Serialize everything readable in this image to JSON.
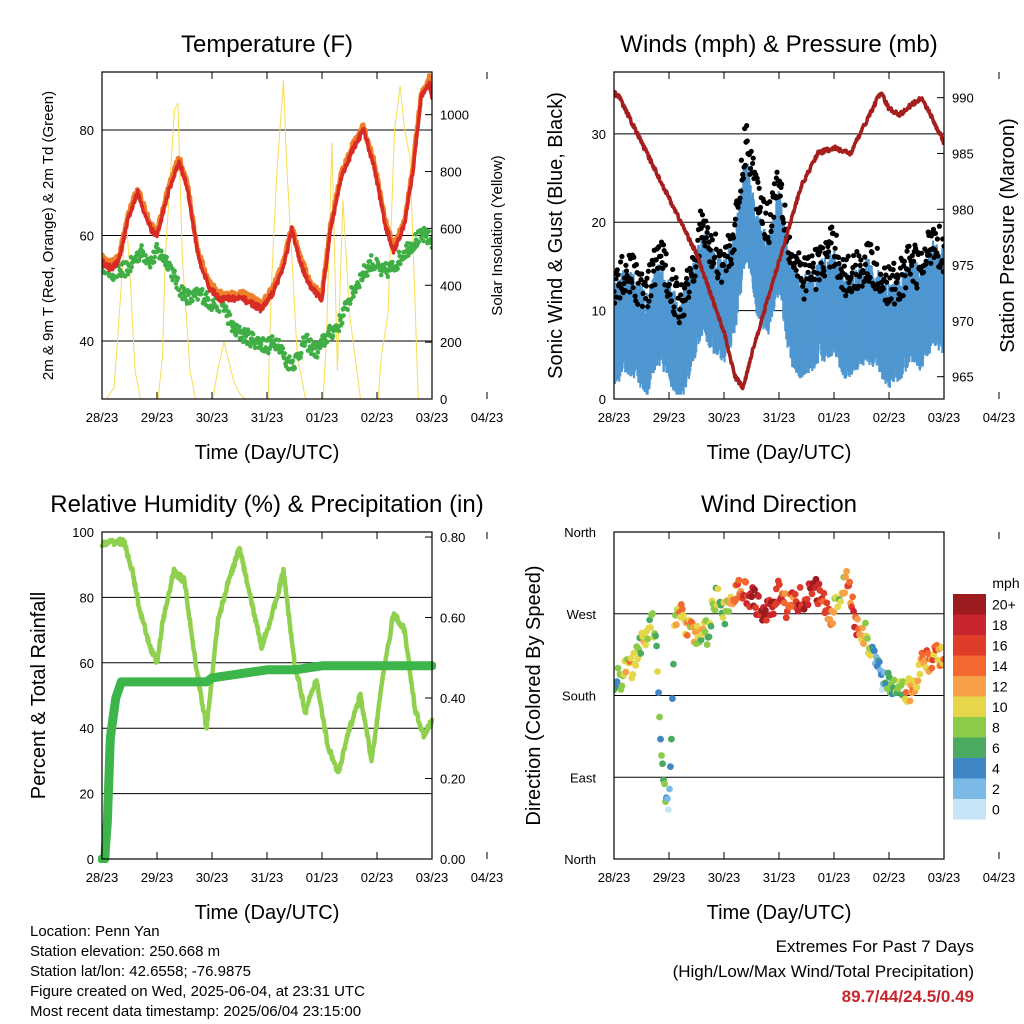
{
  "colors": {
    "temp_2m": "#d92b26",
    "temp_9m": "#f07f2a",
    "dewpoint": "#3fae45",
    "solar": "#f7dc55",
    "wind": "#4f97d1",
    "gust": "#000000",
    "pressure": "#a51e1e",
    "rh": "#8fd14f",
    "precip": "#3cb54a",
    "extremes": "#c8262e"
  },
  "chart_data": [
    {
      "type": "line",
      "title": "Temperature (F)",
      "xlabel": "Time (Day/UTC)",
      "ylabel": "2m & 9m T (Red, Orange) & 2m Td (Green)",
      "ylabel_right": "Solar Insolation (Yellow)",
      "x_ticks": [
        "28/23",
        "29/23",
        "30/23",
        "31/23",
        "01/23",
        "02/23",
        "03/23",
        "04/23"
      ],
      "xlim_days": [
        0,
        6
      ],
      "ylim": [
        29,
        91
      ],
      "yticks": [
        40,
        60,
        80
      ],
      "ylim_right": [
        0,
        1150
      ],
      "yticks_right": [
        0,
        200,
        400,
        600,
        800,
        1000
      ],
      "grid": "horizontal at 40, 60, 80",
      "series": [
        {
          "key": "temp",
          "x": [
            0,
            0.1,
            0.2,
            0.3,
            0.5,
            0.65,
            0.75,
            0.9,
            1.0,
            1.2,
            1.4,
            1.55,
            1.75,
            1.95,
            2.15,
            2.35,
            2.55,
            2.75,
            2.9,
            3.1,
            3.3,
            3.45,
            3.6,
            3.8,
            4.0,
            4.15,
            4.35,
            4.55,
            4.75,
            4.95,
            5.15,
            5.3,
            5.5,
            5.65,
            5.8,
            5.95,
            6.0
          ],
          "values": [
            55,
            54,
            54,
            55,
            64,
            68,
            65,
            61,
            60,
            68,
            74,
            69,
            56,
            50,
            48,
            48,
            48,
            47,
            46,
            49,
            54,
            61,
            55,
            50,
            48,
            61,
            71,
            76,
            80,
            73,
            62,
            57,
            62,
            72,
            86,
            89,
            86
          ]
        },
        {
          "key": "dewpoint",
          "x": [
            0,
            0.15,
            0.3,
            0.5,
            0.7,
            0.9,
            1.0,
            1.2,
            1.4,
            1.6,
            1.8,
            2.0,
            2.2,
            2.4,
            2.6,
            2.8,
            3.0,
            3.2,
            3.35,
            3.5,
            3.7,
            3.9,
            4.1,
            4.3,
            4.5,
            4.7,
            4.9,
            5.1,
            5.3,
            5.5,
            5.7,
            5.85,
            6.0
          ],
          "values": [
            55,
            53,
            53,
            54,
            57,
            55,
            57,
            55,
            50,
            48,
            49,
            47,
            47,
            42,
            41,
            40,
            39,
            40,
            36,
            36,
            40,
            38,
            41,
            43,
            48,
            52,
            55,
            53,
            54,
            57,
            59,
            60,
            59
          ]
        },
        {
          "key": "solar",
          "x": [
            0,
            0.08,
            0.22,
            0.35,
            0.44,
            0.52,
            0.6,
            0.7,
            1.02,
            1.1,
            1.15,
            1.32,
            1.38,
            1.46,
            1.6,
            1.7,
            2.02,
            2.1,
            2.22,
            2.32,
            2.4,
            2.5,
            2.6,
            3.02,
            3.08,
            3.18,
            3.3,
            3.35,
            3.45,
            3.55,
            3.7,
            4.02,
            4.08,
            4.18,
            4.28,
            4.38,
            4.5,
            4.7,
            5.02,
            5.08,
            5.2,
            5.32,
            5.42,
            5.5,
            5.6,
            5.75,
            6.0
          ],
          "values": [
            0,
            0,
            40,
            400,
            650,
            400,
            100,
            0,
            0,
            150,
            500,
            1020,
            1040,
            500,
            100,
            0,
            0,
            100,
            200,
            120,
            60,
            20,
            0,
            0,
            400,
            800,
            1120,
            850,
            500,
            150,
            0,
            0,
            200,
            900,
            100,
            700,
            300,
            0,
            0,
            150,
            300,
            950,
            1100,
            950,
            850,
            0,
            0
          ]
        }
      ]
    },
    {
      "type": "scatter",
      "title": "Winds (mph) & Pressure (mb)",
      "xlabel": "Time (Day/UTC)",
      "ylabel": "Sonic Wind & Gust (Blue, Black)",
      "ylabel_right": "Station Pressure (Maroon)",
      "x_ticks": [
        "28/23",
        "29/23",
        "30/23",
        "31/23",
        "01/23",
        "02/23",
        "03/23",
        "04/23"
      ],
      "xlim_days": [
        0,
        6
      ],
      "ylim": [
        0,
        37
      ],
      "yticks": [
        0,
        10,
        20,
        30
      ],
      "ylim_right": [
        963,
        992.3
      ],
      "yticks_right": [
        965,
        970,
        975,
        980,
        985,
        990
      ],
      "grid": "horizontal at 10, 20, 30",
      "series": [
        {
          "key": "wind",
          "x": [
            0,
            0.2,
            0.4,
            0.6,
            0.8,
            1.0,
            1.2,
            1.4,
            1.6,
            1.8,
            2.0,
            2.2,
            2.4,
            2.6,
            2.8,
            3.0,
            3.2,
            3.4,
            3.6,
            3.8,
            4.0,
            4.2,
            4.4,
            4.6,
            4.8,
            5.0,
            5.2,
            5.4,
            5.6,
            5.8,
            6.0
          ],
          "values": [
            7,
            9,
            8,
            6,
            10,
            8,
            5,
            9,
            13,
            11,
            10,
            13,
            22,
            15,
            13,
            18,
            10,
            8,
            9,
            10,
            11,
            8,
            9,
            10,
            9,
            7,
            8,
            10,
            9,
            12,
            11
          ]
        },
        {
          "key": "gust",
          "x": [
            0,
            0.2,
            0.4,
            0.6,
            0.8,
            1.0,
            1.2,
            1.4,
            1.6,
            1.8,
            2.0,
            2.2,
            2.4,
            2.6,
            2.8,
            3.0,
            3.2,
            3.4,
            3.6,
            3.8,
            4.0,
            4.2,
            4.4,
            4.6,
            4.8,
            5.0,
            5.2,
            5.4,
            5.6,
            5.8,
            6.0
          ],
          "values": [
            12,
            14,
            13,
            11,
            16,
            13,
            10,
            14,
            19,
            16,
            15,
            18,
            29,
            23,
            19,
            25,
            16,
            13,
            14,
            15,
            17,
            13,
            14,
            15,
            14,
            12,
            13,
            15,
            14,
            18,
            16
          ]
        },
        {
          "key": "pressure",
          "x": [
            0,
            0.1,
            0.3,
            0.6,
            1.0,
            1.5,
            2.0,
            2.2,
            2.35,
            2.5,
            2.8,
            3.1,
            3.4,
            3.7,
            4.0,
            4.3,
            4.6,
            4.85,
            5.0,
            5.2,
            5.45,
            5.6,
            5.8,
            6.0
          ],
          "values": [
            990.5,
            990,
            988,
            985,
            981,
            976,
            969,
            965,
            964,
            967,
            972,
            977,
            982,
            985,
            985.5,
            985,
            988,
            990.5,
            989,
            988.5,
            989.5,
            990,
            988,
            986
          ]
        }
      ]
    },
    {
      "type": "line",
      "title": "Relative Humidity (%) & Precipitation (in)",
      "xlabel": "Time (Day/UTC)",
      "ylabel": "Percent & Total Rainfall",
      "x_ticks": [
        "28/23",
        "29/23",
        "30/23",
        "31/23",
        "01/23",
        "02/23",
        "03/23",
        "04/23"
      ],
      "xlim_days": [
        0,
        6
      ],
      "ylim": [
        0,
        100
      ],
      "yticks": [
        0,
        20,
        40,
        60,
        80,
        100
      ],
      "ylim_right": [
        0,
        0.8125
      ],
      "yticks_right": [
        "0.00",
        "0.20",
        "0.40",
        "0.60",
        "0.80"
      ],
      "grid": "horizontal at 20, 40, 60, 80",
      "series": [
        {
          "key": "rh",
          "x": [
            0,
            0.2,
            0.4,
            0.55,
            0.7,
            0.85,
            1.0,
            1.1,
            1.3,
            1.5,
            1.7,
            1.9,
            2.1,
            2.3,
            2.5,
            2.7,
            2.9,
            3.1,
            3.3,
            3.5,
            3.7,
            3.9,
            4.1,
            4.3,
            4.5,
            4.7,
            4.9,
            5.1,
            5.3,
            5.5,
            5.7,
            5.85,
            6.0
          ],
          "values": [
            96,
            97,
            97,
            88,
            75,
            66,
            60,
            72,
            88,
            85,
            60,
            40,
            72,
            85,
            95,
            80,
            65,
            75,
            88,
            60,
            45,
            55,
            35,
            26,
            40,
            50,
            30,
            55,
            75,
            70,
            45,
            38,
            42
          ]
        },
        {
          "key": "precip",
          "x": [
            0,
            0.05,
            0.1,
            0.15,
            0.25,
            0.35,
            0.5,
            1.0,
            1.5,
            1.9,
            2.0,
            2.5,
            3.0,
            3.5,
            4.0,
            4.5,
            5.0,
            5.5,
            6.0
          ],
          "values": [
            0,
            0,
            0.1,
            0.3,
            0.4,
            0.44,
            0.44,
            0.44,
            0.44,
            0.44,
            0.45,
            0.46,
            0.47,
            0.47,
            0.48,
            0.48,
            0.48,
            0.48,
            0.48
          ]
        }
      ]
    },
    {
      "type": "scatter",
      "title": "Wind Direction",
      "xlabel": "Time (Day/UTC)",
      "ylabel": "Direction (Colored By Speed)",
      "x_ticks": [
        "28/23",
        "29/23",
        "30/23",
        "31/23",
        "01/23",
        "02/23",
        "03/23",
        "04/23"
      ],
      "xlim_days": [
        0,
        6
      ],
      "ylim_deg": [
        0,
        360
      ],
      "y_ticks": [
        "North",
        "East",
        "South",
        "West",
        "North"
      ],
      "grid": "horizontal at East, South, West",
      "colorbar": {
        "title": "mph",
        "labels": [
          "20+",
          "18",
          "16",
          "14",
          "12",
          "10",
          "8",
          "6",
          "4",
          "2",
          "0"
        ],
        "colors": [
          "#9b1b1e",
          "#c8262e",
          "#e03c2a",
          "#f2682e",
          "#f8a048",
          "#e6d64a",
          "#8ccb48",
          "#4aab60",
          "#3e86c4",
          "#7bb9e6",
          "#c6e6f7"
        ]
      },
      "series": [
        {
          "key": "direction",
          "x": [
            0,
            0.1,
            0.2,
            0.3,
            0.45,
            0.6,
            0.75,
            0.9,
            1.0,
            1.1,
            1.2,
            1.35,
            1.5,
            1.7,
            1.85,
            2.0,
            2.15,
            2.3,
            2.45,
            2.6,
            2.8,
            3.0,
            3.15,
            3.3,
            3.5,
            3.65,
            3.8,
            3.95,
            4.1,
            4.25,
            4.4,
            4.55,
            4.7,
            4.85,
            5.0,
            5.15,
            5.3,
            5.45,
            5.6,
            5.75,
            5.9,
            6.0
          ],
          "degrees": [
            200,
            195,
            205,
            210,
            230,
            250,
            260,
            80,
            60,
            255,
            270,
            250,
            245,
            250,
            290,
            270,
            285,
            300,
            290,
            280,
            270,
            295,
            275,
            285,
            290,
            300,
            280,
            270,
            285,
            310,
            260,
            250,
            230,
            200,
            190,
            180,
            185,
            190,
            215,
            220,
            225,
            230
          ],
          "speeds": [
            4,
            6,
            10,
            12,
            8,
            10,
            7,
            5,
            3,
            9,
            11,
            12,
            10,
            8,
            9,
            7,
            12,
            14,
            18,
            20,
            19,
            17,
            14,
            16,
            18,
            20,
            15,
            12,
            9,
            14,
            16,
            10,
            6,
            3,
            5,
            8,
            10,
            12,
            12,
            14,
            13,
            12
          ]
        }
      ]
    }
  ],
  "info": {
    "location": "Location: Penn Yan",
    "elevation": "Station elevation: 250.668 m",
    "latlon": "Station lat/lon: 42.6558; -76.9875",
    "created": "Figure created on Wed, 2025-06-04, at 23:31 UTC",
    "latest": "Most recent data timestamp: 2025/06/04 23:15:00"
  },
  "extremes": {
    "title": "Extremes For Past 7 Days",
    "subtitle": "(High/Low/Max Wind/Total Precipitation)",
    "values": "89.7/44/24.5/0.49"
  }
}
